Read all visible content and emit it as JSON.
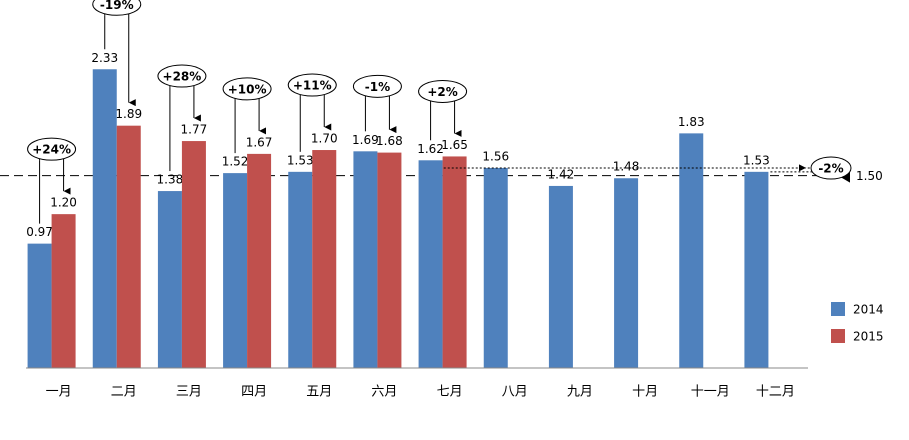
{
  "chart_data": {
    "type": "bar",
    "categories": [
      "一月",
      "二月",
      "三月",
      "四月",
      "五月",
      "六月",
      "七月",
      "八月",
      "九月",
      "十月",
      "十一月",
      "十二月"
    ],
    "series": [
      {
        "name": "2014",
        "color": "#4f81bd",
        "values": [
          0.97,
          2.33,
          1.38,
          1.52,
          1.53,
          1.69,
          1.62,
          1.56,
          1.42,
          1.48,
          1.83,
          1.53
        ],
        "value_labels": [
          "0.97",
          "2.33",
          "1.38",
          "1.52",
          "1.53",
          "1.69",
          "1.62",
          "1.56",
          "1.42",
          "1.48",
          "1.83",
          "1.53"
        ]
      },
      {
        "name": "2015",
        "color": "#c0504d",
        "values": [
          1.2,
          1.89,
          1.77,
          1.67,
          1.7,
          1.68,
          1.65,
          null,
          null,
          null,
          null,
          null
        ],
        "value_labels": [
          "1.20",
          "1.89",
          "1.77",
          "1.67",
          "1.70",
          "1.68",
          "1.65",
          null,
          null,
          null,
          null,
          null
        ]
      }
    ],
    "change_labels": [
      "+24%",
      "-19%",
      "+28%",
      "+10%",
      "+11%",
      "-1%",
      "+2%",
      null,
      null,
      null,
      null,
      null
    ],
    "reference_line": {
      "value": 1.5,
      "label": "1.50"
    },
    "overall_change_label": "-2%",
    "ylim": [
      0,
      2.8
    ],
    "legend": "right"
  }
}
